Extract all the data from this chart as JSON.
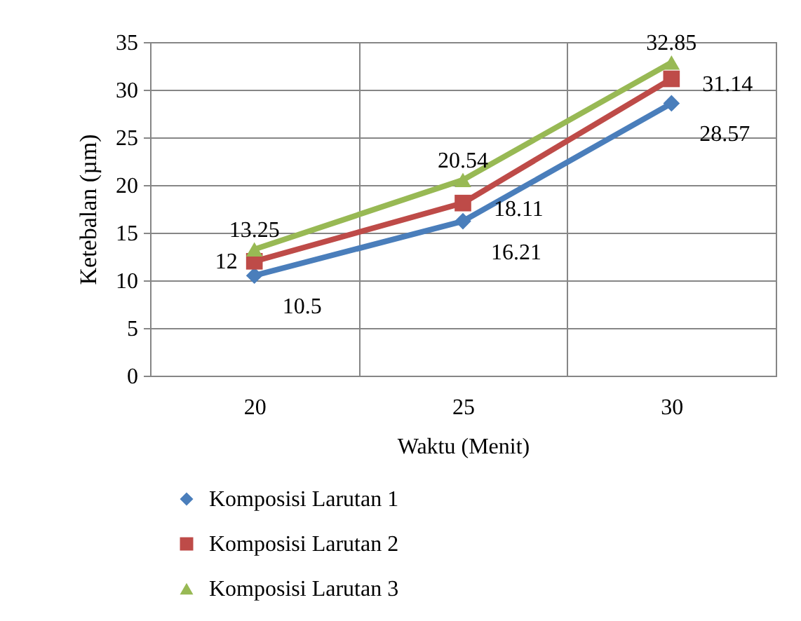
{
  "chart_data": {
    "type": "line",
    "xlabel": "Waktu (Menit)",
    "ylabel": "Ketebalan (µm)",
    "categories": [
      "20",
      "25",
      "30"
    ],
    "series": [
      {
        "name": "Komposisi Larutan 1",
        "color": "#4a7ebb",
        "marker": "diamond",
        "values": [
          10.5,
          16.21,
          28.57
        ]
      },
      {
        "name": "Komposisi Larutan 2",
        "color": "#be4b48",
        "marker": "square",
        "values": [
          12,
          18.11,
          31.14
        ]
      },
      {
        "name": "Komposisi Larutan 3",
        "color": "#98b954",
        "marker": "triangle",
        "values": [
          13.25,
          20.54,
          32.85
        ]
      }
    ],
    "ylim": [
      0,
      35
    ],
    "yticks": [
      0,
      5,
      10,
      15,
      20,
      25,
      30,
      35
    ],
    "grid": true,
    "legend": "bottom",
    "data_labels": true
  }
}
